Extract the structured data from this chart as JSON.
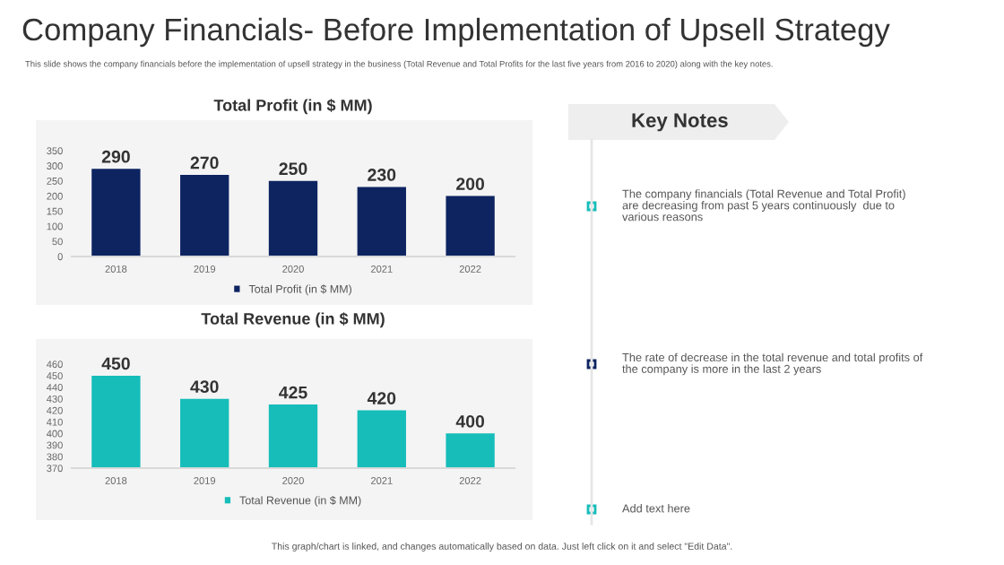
{
  "chart_data": [
    {
      "type": "other",
      "title": "Company Financials- Before Implementation of Upsell Strategy",
      "subtitle": "This slide shows the company financials before the implementation of upsell strategy in the business (Total Revenue and Total Profits for the last five years from 2016 to 2020) along with the key notes.",
      "annotations": [
        "This graph/chart is linked, and changes automatically based on data. Just left click on it and select \"Edit Data\"."
      ]
    },
    {
      "type": "bar",
      "title": "Total Profit (in $ MM)",
      "categories": [
        "2018",
        "2019",
        "2020",
        "2021",
        "2022"
      ],
      "series": [
        {
          "name": "Total Profit (in $ MM)",
          "color": "#0d2461",
          "values": [
            290,
            270,
            250,
            230,
            200
          ]
        }
      ],
      "ylim": [
        0,
        350
      ],
      "yticks": [
        0,
        50,
        100,
        150,
        200,
        250,
        300,
        350
      ],
      "data_labels": true,
      "legend": "bottom",
      "grid": false
    },
    {
      "type": "bar",
      "title": "Total Revenue (in $ MM)",
      "categories": [
        "2018",
        "2019",
        "2020",
        "2021",
        "2022"
      ],
      "series": [
        {
          "name": "Total Revenue (in $ MM)",
          "color": "#16bdb9",
          "values": [
            450,
            430,
            425,
            420,
            400
          ]
        }
      ],
      "ylim": [
        370,
        460
      ],
      "yticks": [
        370,
        380,
        390,
        400,
        410,
        420,
        430,
        440,
        450,
        460
      ],
      "data_labels": true,
      "legend": "bottom",
      "grid": false
    },
    {
      "type": "other",
      "title": "Key Notes",
      "annotations": [
        "The company financials (Total Revenue and Total Profit)\nare decreasing from past 5 years continuously  due to\nvarious reasons",
        "The rate of decrease in the total revenue and total profits of\nthe company is more in the last 2 years",
        "Add text here"
      ]
    }
  ]
}
